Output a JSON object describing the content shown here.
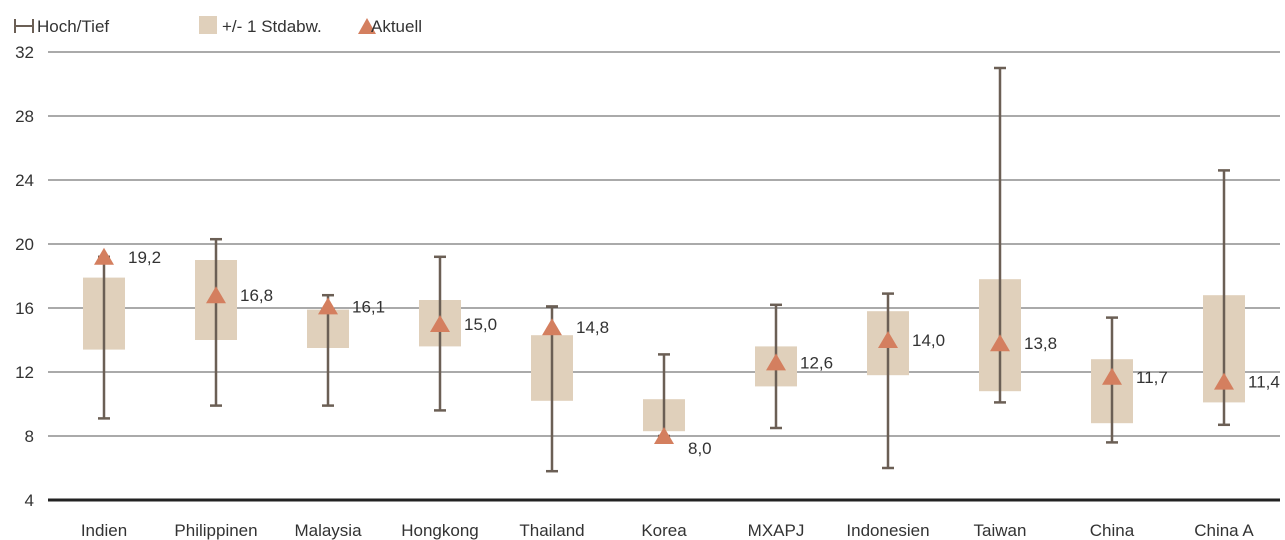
{
  "legend": {
    "range_label": "Hoch/Tief",
    "std_label": "+/- 1 Stdabw.",
    "current_label": "Aktuell"
  },
  "colors": {
    "whisker": "#6b5f55",
    "box": "#e0d0bb",
    "marker": "#d47f5f",
    "grid": "#555555",
    "baseline": "#222222",
    "text": "#333333"
  },
  "chart_data": {
    "type": "box-range",
    "title": "",
    "xlabel": "",
    "ylabel": "",
    "ylim": [
      4,
      32
    ],
    "yticks": [
      4,
      8,
      12,
      16,
      20,
      24,
      28,
      32
    ],
    "grid": "horizontal",
    "legend_position": "top-left",
    "categories": [
      "Indien",
      "Philippinen",
      "Malaysia",
      "Hongkong",
      "Thailand",
      "Korea",
      "MXAPJ",
      "Indonesien",
      "Taiwan",
      "China",
      "China A"
    ],
    "series": [
      {
        "name": "Hoch/Tief",
        "high": [
          19.2,
          20.3,
          16.8,
          19.2,
          16.1,
          13.1,
          16.2,
          16.9,
          31.0,
          15.4,
          24.6
        ],
        "low": [
          9.1,
          9.9,
          9.9,
          9.6,
          5.8,
          8.0,
          8.5,
          6.0,
          10.1,
          7.6,
          8.7
        ]
      },
      {
        "name": "+/- 1 Stdabw.",
        "upper": [
          17.9,
          19.0,
          15.9,
          16.5,
          14.3,
          10.3,
          13.6,
          15.8,
          17.8,
          12.8,
          16.8
        ],
        "lower": [
          13.4,
          14.0,
          13.5,
          13.6,
          10.2,
          8.3,
          11.1,
          11.8,
          10.8,
          8.8,
          10.1
        ]
      },
      {
        "name": "Aktuell",
        "values": [
          19.2,
          16.8,
          16.1,
          15.0,
          14.8,
          8.0,
          12.6,
          14.0,
          13.8,
          11.7,
          11.4
        ],
        "labels": [
          "19,2",
          "16,8",
          "16,1",
          "15,0",
          "14,8",
          "8,0",
          "12,6",
          "14,0",
          "13,8",
          "11,7",
          "11,4"
        ]
      }
    ]
  }
}
